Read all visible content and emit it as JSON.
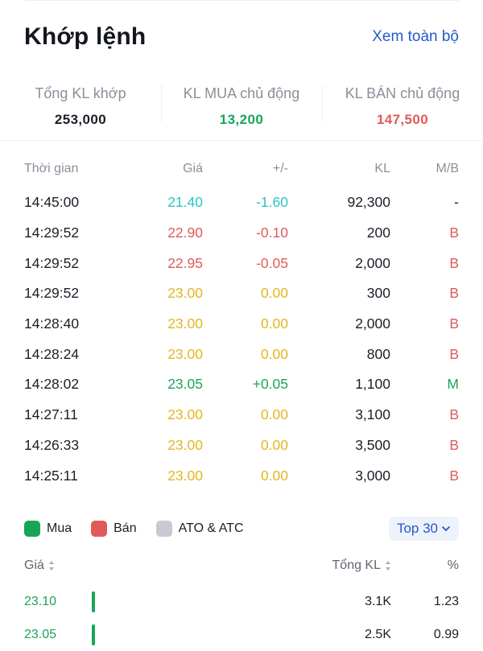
{
  "header": {
    "title": "Khớp lệnh",
    "view_all": "Xem toàn bộ"
  },
  "summary": [
    {
      "label": "Tổng KL khớp",
      "value": "253,000",
      "color": "#1b1f27"
    },
    {
      "label": "KL MUA chủ động",
      "value": "13,200",
      "color": "#18a558"
    },
    {
      "label": "KL BÁN chủ động",
      "value": "147,500",
      "color": "#e05a5a"
    }
  ],
  "trade_headers": {
    "time": "Thời gian",
    "price": "Giá",
    "change": "+/-",
    "volume": "KL",
    "side": "M/B"
  },
  "colors": {
    "ceiling": "#2bc4c4",
    "down": "#e05a5a",
    "ref": "#e2b71e",
    "up": "#18a558",
    "neutral": "#1b1f27",
    "buy": "#18a558",
    "sell": "#e05a5a",
    "ato": "#c9c9d6"
  },
  "trades": [
    {
      "time": "14:45:00",
      "price": "21.40",
      "change": "-1.60",
      "volume": "92,300",
      "side": "-",
      "tone": "ceiling",
      "side_tone": "neutral"
    },
    {
      "time": "14:29:52",
      "price": "22.90",
      "change": "-0.10",
      "volume": "200",
      "side": "B",
      "tone": "down",
      "side_tone": "sell"
    },
    {
      "time": "14:29:52",
      "price": "22.95",
      "change": "-0.05",
      "volume": "2,000",
      "side": "B",
      "tone": "down",
      "side_tone": "sell"
    },
    {
      "time": "14:29:52",
      "price": "23.00",
      "change": "0.00",
      "volume": "300",
      "side": "B",
      "tone": "ref",
      "side_tone": "sell"
    },
    {
      "time": "14:28:40",
      "price": "23.00",
      "change": "0.00",
      "volume": "2,000",
      "side": "B",
      "tone": "ref",
      "side_tone": "sell"
    },
    {
      "time": "14:28:24",
      "price": "23.00",
      "change": "0.00",
      "volume": "800",
      "side": "B",
      "tone": "ref",
      "side_tone": "sell"
    },
    {
      "time": "14:28:02",
      "price": "23.05",
      "change": "+0.05",
      "volume": "1,100",
      "side": "M",
      "tone": "up",
      "side_tone": "buy"
    },
    {
      "time": "14:27:11",
      "price": "23.00",
      "change": "0.00",
      "volume": "3,100",
      "side": "B",
      "tone": "ref",
      "side_tone": "sell"
    },
    {
      "time": "14:26:33",
      "price": "23.00",
      "change": "0.00",
      "volume": "3,500",
      "side": "B",
      "tone": "ref",
      "side_tone": "sell"
    },
    {
      "time": "14:25:11",
      "price": "23.00",
      "change": "0.00",
      "volume": "3,000",
      "side": "B",
      "tone": "ref",
      "side_tone": "sell"
    }
  ],
  "legend": {
    "buy": "Mua",
    "sell": "Bán",
    "ato": "ATO & ATC",
    "top_select": "Top 30"
  },
  "price_headers": {
    "price": "Giá",
    "total": "Tổng KL",
    "pct": "%"
  },
  "price_rows": [
    {
      "price": "23.10",
      "total": "3.1K",
      "pct": "1.23"
    },
    {
      "price": "23.05",
      "total": "2.5K",
      "pct": "0.99"
    }
  ]
}
